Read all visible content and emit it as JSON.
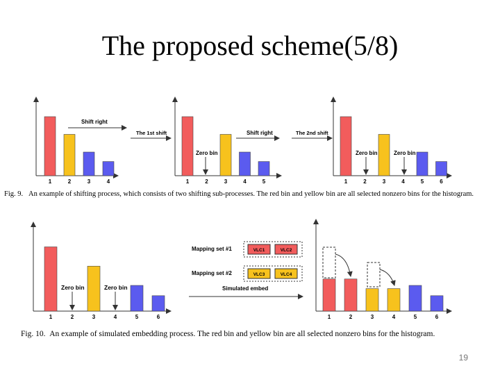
{
  "title": "The proposed scheme(5/8)",
  "page_number": "19",
  "fig9": {
    "caption_label": "Fig. 9.",
    "caption_text": "An example of shifting process, which consists of two shifting sub-processes. The red bin and yellow bin are all selected nonzero bins for the histogram.",
    "arrow1_top": "Shift right",
    "arrow1_bottom": "The 1st shift",
    "arrow2_top": "Shift right",
    "arrow2_bottom": "The 2nd shift",
    "zero_bin": "Zero bin",
    "hist1_ticks": [
      "1",
      "2",
      "3",
      "4"
    ],
    "hist2_ticks": [
      "1",
      "2",
      "3",
      "4",
      "5"
    ],
    "hist3_ticks": [
      "1",
      "2",
      "3",
      "4",
      "5",
      "6"
    ]
  },
  "fig10": {
    "caption_label": "Fig. 10.",
    "caption_text": "An example of simulated embedding process. The red bin and yellow bin are all selected nonzero bins for the histogram.",
    "mapping1_label": "Mapping set #1",
    "mapping2_label": "Mapping set #2",
    "vlc1": "VLC1",
    "vlc2": "VLC2",
    "vlc3": "VLC3",
    "vlc4": "VLC4",
    "simulated_embed": "Simulated embed",
    "zero_bin": "Zero bin",
    "left_ticks": [
      "1",
      "2",
      "3",
      "4",
      "5",
      "6"
    ],
    "right_ticks": [
      "1",
      "2",
      "3",
      "4",
      "5",
      "6"
    ]
  },
  "colors": {
    "red": "#f25c5c",
    "yellow": "#f7c21d",
    "blue": "#5b5bef",
    "stroke": "#333333"
  },
  "chart_data": [
    {
      "type": "bar",
      "name": "fig9-hist1",
      "categories": [
        "1",
        "2",
        "3",
        "4"
      ],
      "values": [
        5,
        3.5,
        2,
        1.2
      ],
      "colors": [
        "red",
        "yellow",
        "blue",
        "blue"
      ]
    },
    {
      "type": "bar",
      "name": "fig9-hist2",
      "categories": [
        "1",
        "2",
        "3",
        "4",
        "5"
      ],
      "values": [
        5,
        0,
        3.5,
        2,
        1.2
      ],
      "colors": [
        "red",
        "red",
        "yellow",
        "blue",
        "blue"
      ]
    },
    {
      "type": "bar",
      "name": "fig9-hist3",
      "categories": [
        "1",
        "2",
        "3",
        "4",
        "5",
        "6"
      ],
      "values": [
        5,
        0,
        3.5,
        0,
        2,
        1.2
      ],
      "colors": [
        "red",
        "red",
        "yellow",
        "yellow",
        "blue",
        "blue"
      ]
    },
    {
      "type": "bar",
      "name": "fig10-left",
      "categories": [
        "1",
        "2",
        "3",
        "4",
        "5",
        "6"
      ],
      "values": [
        5,
        0,
        3.5,
        0,
        2,
        1.2
      ],
      "colors": [
        "red",
        "red",
        "yellow",
        "yellow",
        "blue",
        "blue"
      ]
    },
    {
      "type": "bar",
      "name": "fig10-right",
      "categories": [
        "1",
        "2",
        "3",
        "4",
        "5",
        "6"
      ],
      "values": [
        2.5,
        2.5,
        1.75,
        1.75,
        2,
        1.2
      ],
      "colors": [
        "red",
        "red",
        "yellow",
        "yellow",
        "blue",
        "blue"
      ]
    }
  ]
}
